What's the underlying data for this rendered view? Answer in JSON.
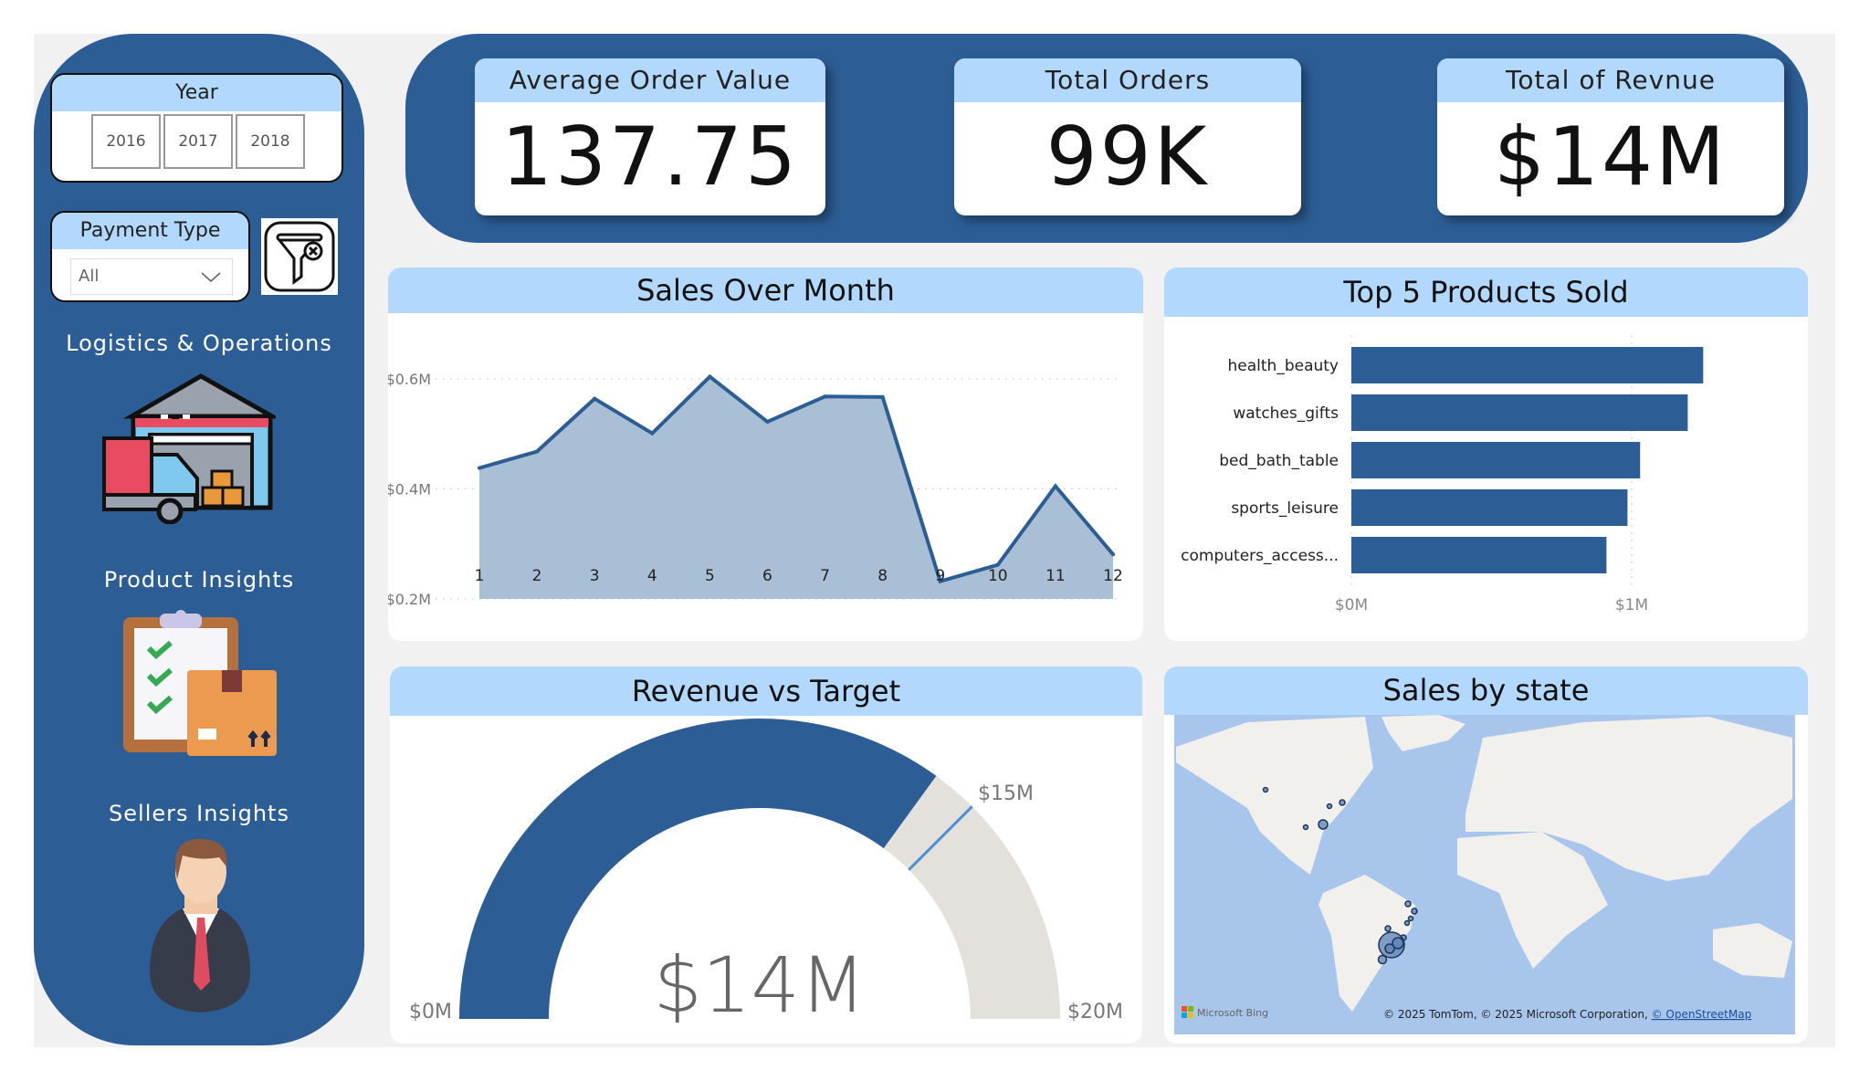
{
  "colors": {
    "primary": "#2c5d94",
    "header": "#b3d8fd",
    "area": "#a9bfd6",
    "gauge_remaining": "#e4e0db",
    "target": "#4a90d9",
    "map_water": "#a8c5ec",
    "map_land": "#f1f0ec"
  },
  "sidebar": {
    "year_slicer": {
      "title": "Year",
      "options": [
        "2016",
        "2017",
        "2018"
      ]
    },
    "payment_slicer": {
      "title": "Payment Type",
      "value": "All",
      "icon": "chevron-down-icon"
    },
    "clear_filters_icon": "funnel-clear-icon",
    "nav": [
      {
        "label": "Logistics & Operations",
        "icon": "warehouse-truck-icon"
      },
      {
        "label": "Product Insights",
        "icon": "clipboard-box-icon"
      },
      {
        "label": "Sellers Insights",
        "icon": "businessman-icon"
      }
    ]
  },
  "kpis": [
    {
      "title": "Average Order Value",
      "value": "137.75"
    },
    {
      "title": "Total Orders",
      "value": "99K"
    },
    {
      "title": "Total of Revnue",
      "value": "$14M"
    }
  ],
  "chart_data": [
    {
      "type": "area",
      "title": "Sales Over Month",
      "x": [
        1,
        2,
        3,
        4,
        5,
        6,
        7,
        8,
        9,
        10,
        11,
        12
      ],
      "values": [
        438000,
        468000,
        564000,
        501000,
        604000,
        522000,
        568000,
        567000,
        232000,
        262000,
        405000,
        281000
      ],
      "yticks": [
        "$0.2M",
        "$0.4M",
        "$0.6M"
      ],
      "ytick_values": [
        200000,
        400000,
        600000
      ],
      "ylim": [
        200000,
        640000
      ],
      "grid": true
    },
    {
      "type": "bar",
      "orientation": "horizontal",
      "title": "Top 5 Products Sold",
      "categories": [
        "health_beauty",
        "watches_gifts",
        "bed_bath_table",
        "sports_leisure",
        "computers_access..."
      ],
      "values": [
        1255000,
        1200000,
        1030000,
        985000,
        910000
      ],
      "xticks": [
        "$0M",
        "$1M"
      ],
      "xtick_values": [
        0,
        1000000
      ],
      "grid": true
    },
    {
      "type": "gauge",
      "title": "Revenue vs Target",
      "value": 14,
      "value_label": "$14M",
      "min": 0,
      "max": 20,
      "target": 15,
      "min_label": "$0M",
      "max_label": "$20M",
      "target_label": "$15M"
    }
  ],
  "map": {
    "title": "Sales by state",
    "logo": "Microsoft Bing",
    "attribution": "© 2025 TomTom, © 2025 Microsoft Corporation, ",
    "attribution_link": "© OpenStreetMap"
  }
}
